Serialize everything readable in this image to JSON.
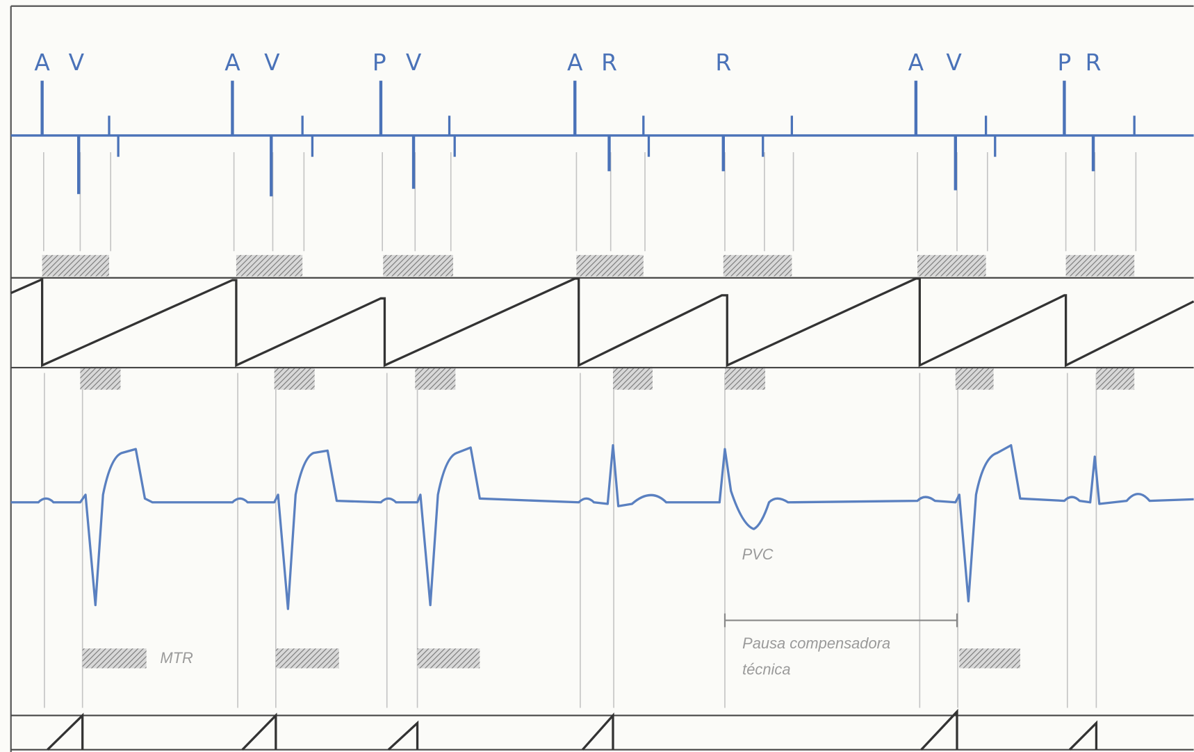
{
  "markers": [
    "A",
    "V",
    "A",
    "V",
    "P",
    "V",
    "A",
    "R",
    "R",
    "A",
    "V",
    "P",
    "R"
  ],
  "annotations": {
    "pvc": "PVC",
    "mtr": "MTR",
    "pause": [
      "Pausa compensadora",
      "técnica"
    ]
  }
}
